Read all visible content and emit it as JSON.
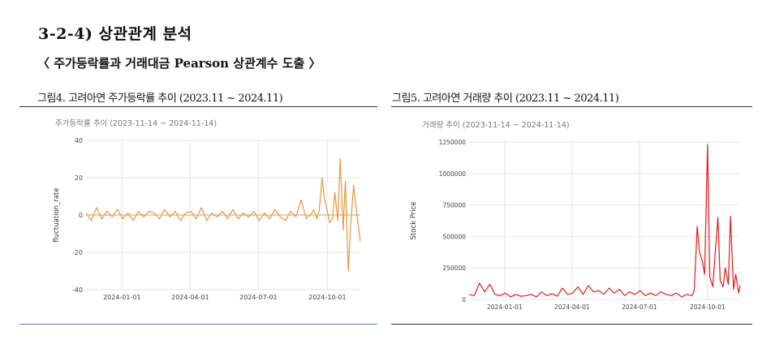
{
  "section": {
    "number": "3-2-4)",
    "title": "상관관계 분석"
  },
  "subtitle": "〈 주가등락률과 거래대금 Pearson 상관계수 도출 〉",
  "figures": [
    {
      "caption": "그림4. 고려아연 주가등락률 추이 (2023.11 ~ 2024.11)"
    },
    {
      "caption": "그림5. 고려아연 거래량 추이 (2023.11 ~ 2024.11)"
    }
  ],
  "chart_data": [
    {
      "type": "line",
      "title": "주가등락률 추이 (2023-11-14 ~ 2024-11-14)",
      "ylabel": "fluctuation_rate",
      "xlabel": "",
      "ylim": [
        -40,
        40
      ],
      "yticks": [
        40,
        20,
        0,
        -20,
        -40
      ],
      "xlim": [
        "2023-11-14",
        "2024-11-14"
      ],
      "xticks": [
        "2024-01-01",
        "2024-04-01",
        "2024-07-01",
        "2024-10-01"
      ],
      "grid": true,
      "color": "#e8963a",
      "series": [
        {
          "x": [
            "2023-11-14",
            "2023-11-21",
            "2023-11-28",
            "2023-12-05",
            "2023-12-12",
            "2023-12-19",
            "2023-12-26",
            "2024-01-02",
            "2024-01-09",
            "2024-01-16",
            "2024-01-23",
            "2024-01-30",
            "2024-02-06",
            "2024-02-13",
            "2024-02-20",
            "2024-02-27",
            "2024-03-05",
            "2024-03-12",
            "2024-03-19",
            "2024-03-26",
            "2024-04-02",
            "2024-04-09",
            "2024-04-16",
            "2024-04-23",
            "2024-04-30",
            "2024-05-07",
            "2024-05-14",
            "2024-05-21",
            "2024-05-28",
            "2024-06-04",
            "2024-06-11",
            "2024-06-18",
            "2024-06-25",
            "2024-07-02",
            "2024-07-09",
            "2024-07-16",
            "2024-07-23",
            "2024-07-30",
            "2024-08-06",
            "2024-08-13",
            "2024-08-20",
            "2024-08-27",
            "2024-09-03",
            "2024-09-10",
            "2024-09-13",
            "2024-09-17",
            "2024-09-20",
            "2024-09-24",
            "2024-09-27",
            "2024-10-01",
            "2024-10-04",
            "2024-10-08",
            "2024-10-11",
            "2024-10-15",
            "2024-10-18",
            "2024-10-22",
            "2024-10-25",
            "2024-10-29",
            "2024-11-01",
            "2024-11-05",
            "2024-11-08",
            "2024-11-12",
            "2024-11-14"
          ],
          "y": [
            1,
            -3,
            4,
            -2,
            2,
            -1,
            3,
            -2,
            1,
            -3,
            2,
            -1,
            2,
            1,
            -2,
            3,
            -1,
            2,
            -3,
            1,
            2,
            -2,
            4,
            -3,
            1,
            -1,
            2,
            -2,
            3,
            -2,
            1,
            -1,
            2,
            -3,
            1,
            -2,
            3,
            -1,
            -3,
            2,
            -1,
            8,
            -2,
            1,
            3,
            -2,
            2,
            20,
            9,
            2,
            -4,
            -2,
            12,
            -3,
            30,
            -8,
            18,
            -30,
            -6,
            16,
            5,
            -8,
            -14
          ]
        }
      ]
    },
    {
      "type": "line",
      "title": "거래량 추이 (2023-11-14 ~ 2024-11-14)",
      "ylabel": "Stock Price",
      "xlabel": "",
      "ylim": [
        0,
        1250000
      ],
      "yticks": [
        1250000,
        1000000,
        750000,
        500000,
        250000,
        0
      ],
      "xlim": [
        "2023-11-14",
        "2024-11-14"
      ],
      "xticks": [
        "2024-01-01",
        "2024-04-01",
        "2024-07-01",
        "2024-10-01"
      ],
      "grid": true,
      "color": "#e31a1c",
      "series": [
        {
          "x": [
            "2023-11-14",
            "2023-11-21",
            "2023-11-28",
            "2023-12-05",
            "2023-12-12",
            "2023-12-19",
            "2023-12-26",
            "2024-01-02",
            "2024-01-09",
            "2024-01-16",
            "2024-01-23",
            "2024-01-30",
            "2024-02-06",
            "2024-02-13",
            "2024-02-20",
            "2024-02-27",
            "2024-03-05",
            "2024-03-12",
            "2024-03-19",
            "2024-03-26",
            "2024-04-02",
            "2024-04-09",
            "2024-04-16",
            "2024-04-23",
            "2024-04-30",
            "2024-05-07",
            "2024-05-14",
            "2024-05-21",
            "2024-05-28",
            "2024-06-04",
            "2024-06-11",
            "2024-06-18",
            "2024-06-25",
            "2024-07-02",
            "2024-07-09",
            "2024-07-16",
            "2024-07-23",
            "2024-07-30",
            "2024-08-06",
            "2024-08-13",
            "2024-08-20",
            "2024-08-27",
            "2024-09-03",
            "2024-09-10",
            "2024-09-13",
            "2024-09-17",
            "2024-09-20",
            "2024-09-24",
            "2024-09-27",
            "2024-10-01",
            "2024-10-04",
            "2024-10-08",
            "2024-10-11",
            "2024-10-15",
            "2024-10-18",
            "2024-10-22",
            "2024-10-25",
            "2024-10-29",
            "2024-11-01",
            "2024-11-05",
            "2024-11-08",
            "2024-11-12",
            "2024-11-14"
          ],
          "y": [
            40000,
            30000,
            130000,
            60000,
            120000,
            40000,
            30000,
            50000,
            20000,
            40000,
            25000,
            30000,
            40000,
            20000,
            60000,
            30000,
            45000,
            25000,
            90000,
            40000,
            50000,
            100000,
            40000,
            110000,
            60000,
            70000,
            40000,
            90000,
            50000,
            80000,
            30000,
            60000,
            40000,
            70000,
            30000,
            50000,
            30000,
            60000,
            40000,
            30000,
            50000,
            20000,
            40000,
            30000,
            70000,
            580000,
            380000,
            300000,
            200000,
            1230000,
            180000,
            100000,
            350000,
            650000,
            150000,
            100000,
            250000,
            120000,
            660000,
            80000,
            200000,
            50000,
            110000
          ]
        }
      ]
    }
  ]
}
